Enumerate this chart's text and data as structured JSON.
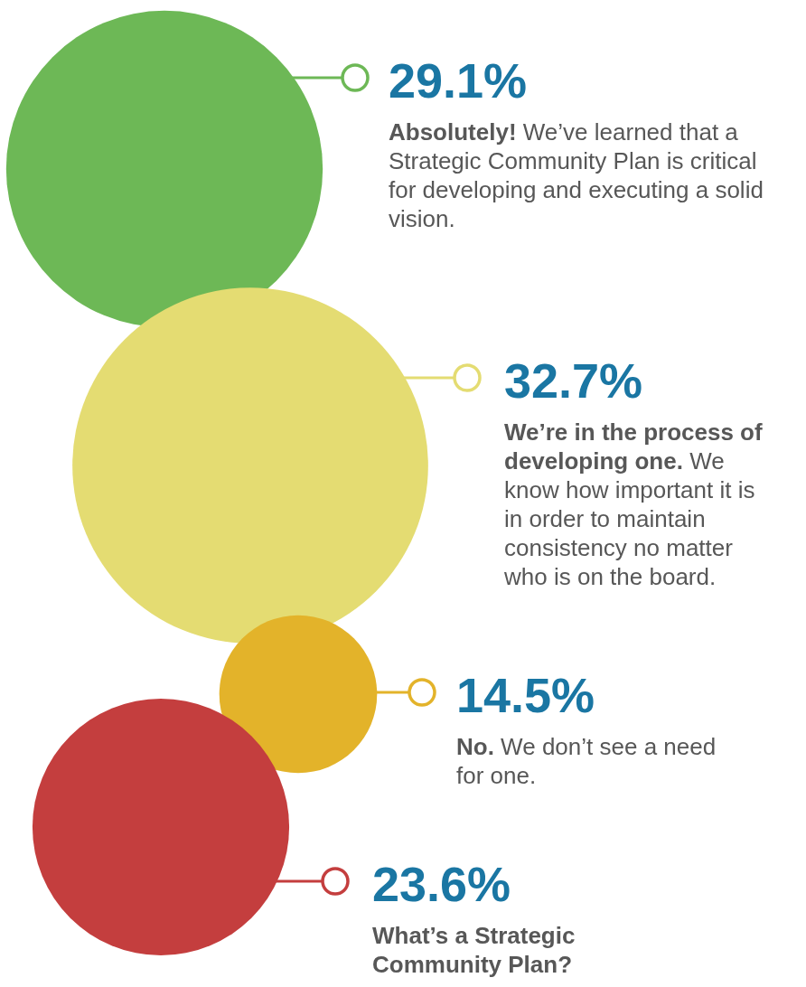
{
  "chart_data": {
    "type": "other",
    "categories": [
      "Absolutely!",
      "We’re in the process of developing one.",
      "No.",
      "What’s a Strategic Community Plan?"
    ],
    "values": [
      29.1,
      32.7,
      14.5,
      23.6
    ],
    "value_labels": [
      "29.1%",
      "32.7%",
      "14.5%",
      "23.6%"
    ],
    "colors": [
      "#6db856",
      "#e4dc72",
      "#e3b32a",
      "#c43e3e"
    ],
    "annotations": [
      "We’ve learned that a Strategic Community Plan is critical for developing and executing a solid vision.",
      "We know how important it is in order to maintain consistency no matter who is on the board.",
      "We don’t see a need for one."
    ]
  }
}
